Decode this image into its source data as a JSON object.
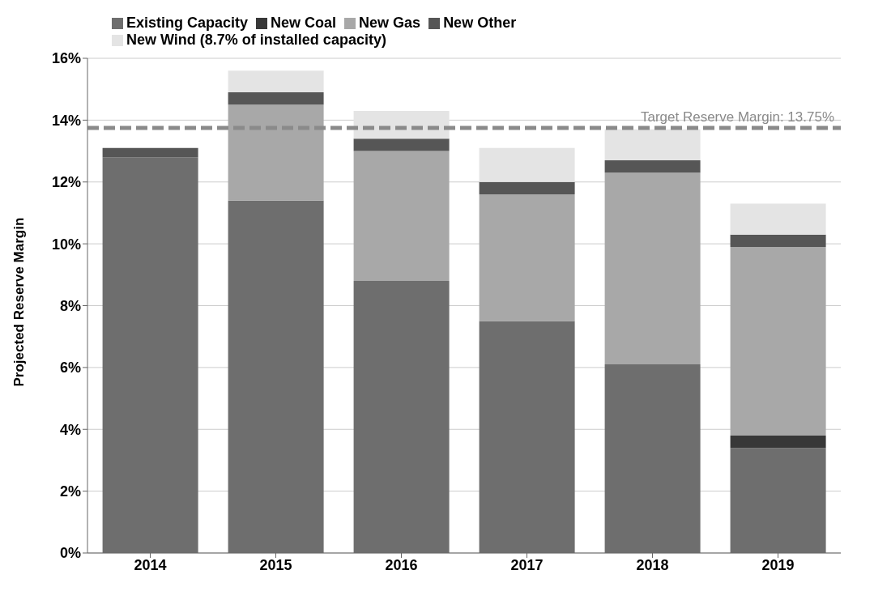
{
  "chart_data": {
    "type": "bar",
    "stacked": true,
    "ylabel": "Projected Reserve Margin",
    "categories": [
      "2014",
      "2015",
      "2016",
      "2017",
      "2018",
      "2019"
    ],
    "series": [
      {
        "name": "Existing Capacity",
        "color": "#6e6e6e",
        "values": [
          12.8,
          11.4,
          8.8,
          7.5,
          6.1,
          3.4
        ]
      },
      {
        "name": "New Coal",
        "color": "#383838",
        "values": [
          0,
          0,
          0,
          0,
          0,
          0.4
        ]
      },
      {
        "name": "New Gas",
        "color": "#a8a8a8",
        "values": [
          0,
          3.1,
          4.2,
          4.1,
          6.2,
          6.1
        ]
      },
      {
        "name": "New Other",
        "color": "#565656",
        "values": [
          0.3,
          0.4,
          0.4,
          0.4,
          0.4,
          0.4
        ]
      },
      {
        "name": "New Wind (8.7% of installed capacity)",
        "color": "#e4e4e4",
        "values": [
          0,
          0.7,
          0.9,
          1.1,
          1.0,
          1.0
        ]
      }
    ],
    "ylim": [
      0,
      16
    ],
    "yticks": [
      {
        "value": 0,
        "label": "0%"
      },
      {
        "value": 2,
        "label": "2%"
      },
      {
        "value": 4,
        "label": "4%"
      },
      {
        "value": 6,
        "label": "6%"
      },
      {
        "value": 8,
        "label": "8%"
      },
      {
        "value": 10,
        "label": "10%"
      },
      {
        "value": 12,
        "label": "12%"
      },
      {
        "value": 14,
        "label": "14%"
      },
      {
        "value": 16,
        "label": "16%"
      }
    ],
    "ref_lines": [
      {
        "axis": "y",
        "value": 13.75,
        "label": "Target Reserve Margin: 13.75%",
        "color": "#8a8a8a",
        "line_style": "dashed"
      }
    ],
    "grid": "y",
    "legend": "top left"
  }
}
